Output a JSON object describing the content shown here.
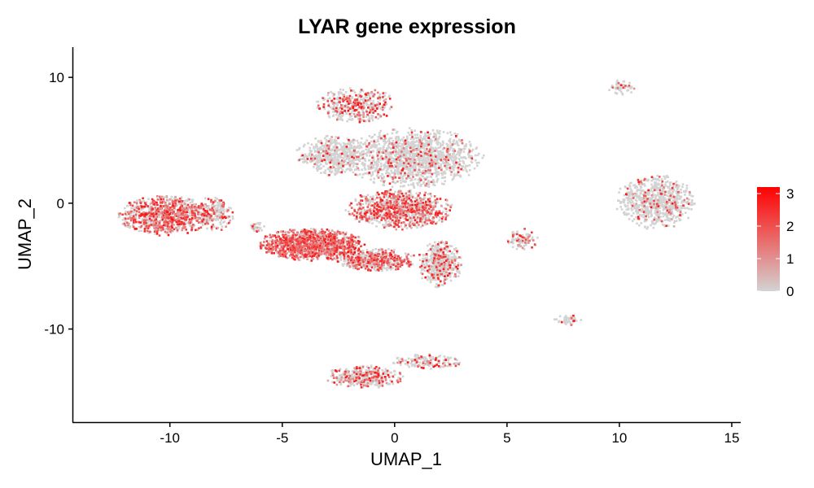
{
  "chart_data": {
    "type": "scatter",
    "title": "LYAR gene expression",
    "xlabel": "UMAP_1",
    "ylabel": "UMAP_2",
    "xlim": [
      -14.3,
      15.4
    ],
    "ylim": [
      -17.4,
      12.4
    ],
    "x_ticks": [
      -10,
      -5,
      0,
      5,
      10,
      15
    ],
    "y_ticks": [
      -10,
      0,
      10
    ],
    "x_tick_labels": [
      "-10",
      "-5",
      "0",
      "5",
      "10",
      "15"
    ],
    "y_tick_labels": [
      "-10",
      "0",
      "10"
    ],
    "grid": false,
    "legend": {
      "placement": "right",
      "type": "colorbar",
      "min": 0,
      "max": 3.2,
      "ticks": [
        0,
        1,
        2,
        3
      ],
      "tick_labels": [
        "0",
        "1",
        "2",
        "3"
      ],
      "low_color": "#d3d3d3",
      "high_color": "#ff0000"
    },
    "point_color_scale": {
      "low": "#d3d3d3",
      "high": "#ff0000"
    },
    "clusters": [
      {
        "cx": -1.7,
        "cy": 7.8,
        "rx": 1.8,
        "ry": 1.4,
        "n": 420,
        "expr": 0.35
      },
      {
        "cx": 0.8,
        "cy": 3.6,
        "rx": 3.2,
        "ry": 2.4,
        "n": 1500,
        "expr": 0.12
      },
      {
        "cx": -2.8,
        "cy": 3.8,
        "rx": 1.6,
        "ry": 1.6,
        "n": 500,
        "expr": 0.1
      },
      {
        "cx": 0.2,
        "cy": -0.5,
        "rx": 2.4,
        "ry": 1.6,
        "n": 900,
        "expr": 0.5
      },
      {
        "cx": -3.7,
        "cy": -3.3,
        "rx": 2.4,
        "ry": 1.3,
        "n": 1200,
        "expr": 0.75
      },
      {
        "cx": -0.8,
        "cy": -4.5,
        "rx": 1.8,
        "ry": 0.9,
        "n": 500,
        "expr": 0.45
      },
      {
        "cx": 2.0,
        "cy": -4.8,
        "rx": 1.0,
        "ry": 1.9,
        "n": 500,
        "expr": 0.2
      },
      {
        "cx": -10.2,
        "cy": -1.0,
        "rx": 2.1,
        "ry": 1.6,
        "n": 950,
        "expr": 0.55
      },
      {
        "cx": -8.0,
        "cy": -0.8,
        "rx": 0.9,
        "ry": 1.4,
        "n": 200,
        "expr": 0.3
      },
      {
        "cx": 11.6,
        "cy": 0.1,
        "rx": 1.8,
        "ry": 2.2,
        "n": 750,
        "expr": 0.12
      },
      {
        "cx": 10.1,
        "cy": 9.2,
        "rx": 0.6,
        "ry": 0.6,
        "n": 60,
        "expr": 0.1
      },
      {
        "cx": 5.7,
        "cy": -2.9,
        "rx": 0.7,
        "ry": 0.9,
        "n": 80,
        "expr": 0.35
      },
      {
        "cx": 7.7,
        "cy": -9.3,
        "rx": 0.6,
        "ry": 0.4,
        "n": 50,
        "expr": 0.15
      },
      {
        "cx": -1.3,
        "cy": -13.8,
        "rx": 1.8,
        "ry": 0.9,
        "n": 380,
        "expr": 0.3
      },
      {
        "cx": 1.5,
        "cy": -12.6,
        "rx": 1.6,
        "ry": 0.6,
        "n": 160,
        "expr": 0.25
      },
      {
        "cx": -6.2,
        "cy": -1.9,
        "rx": 0.4,
        "ry": 0.4,
        "n": 30,
        "expr": 0.15
      }
    ]
  }
}
